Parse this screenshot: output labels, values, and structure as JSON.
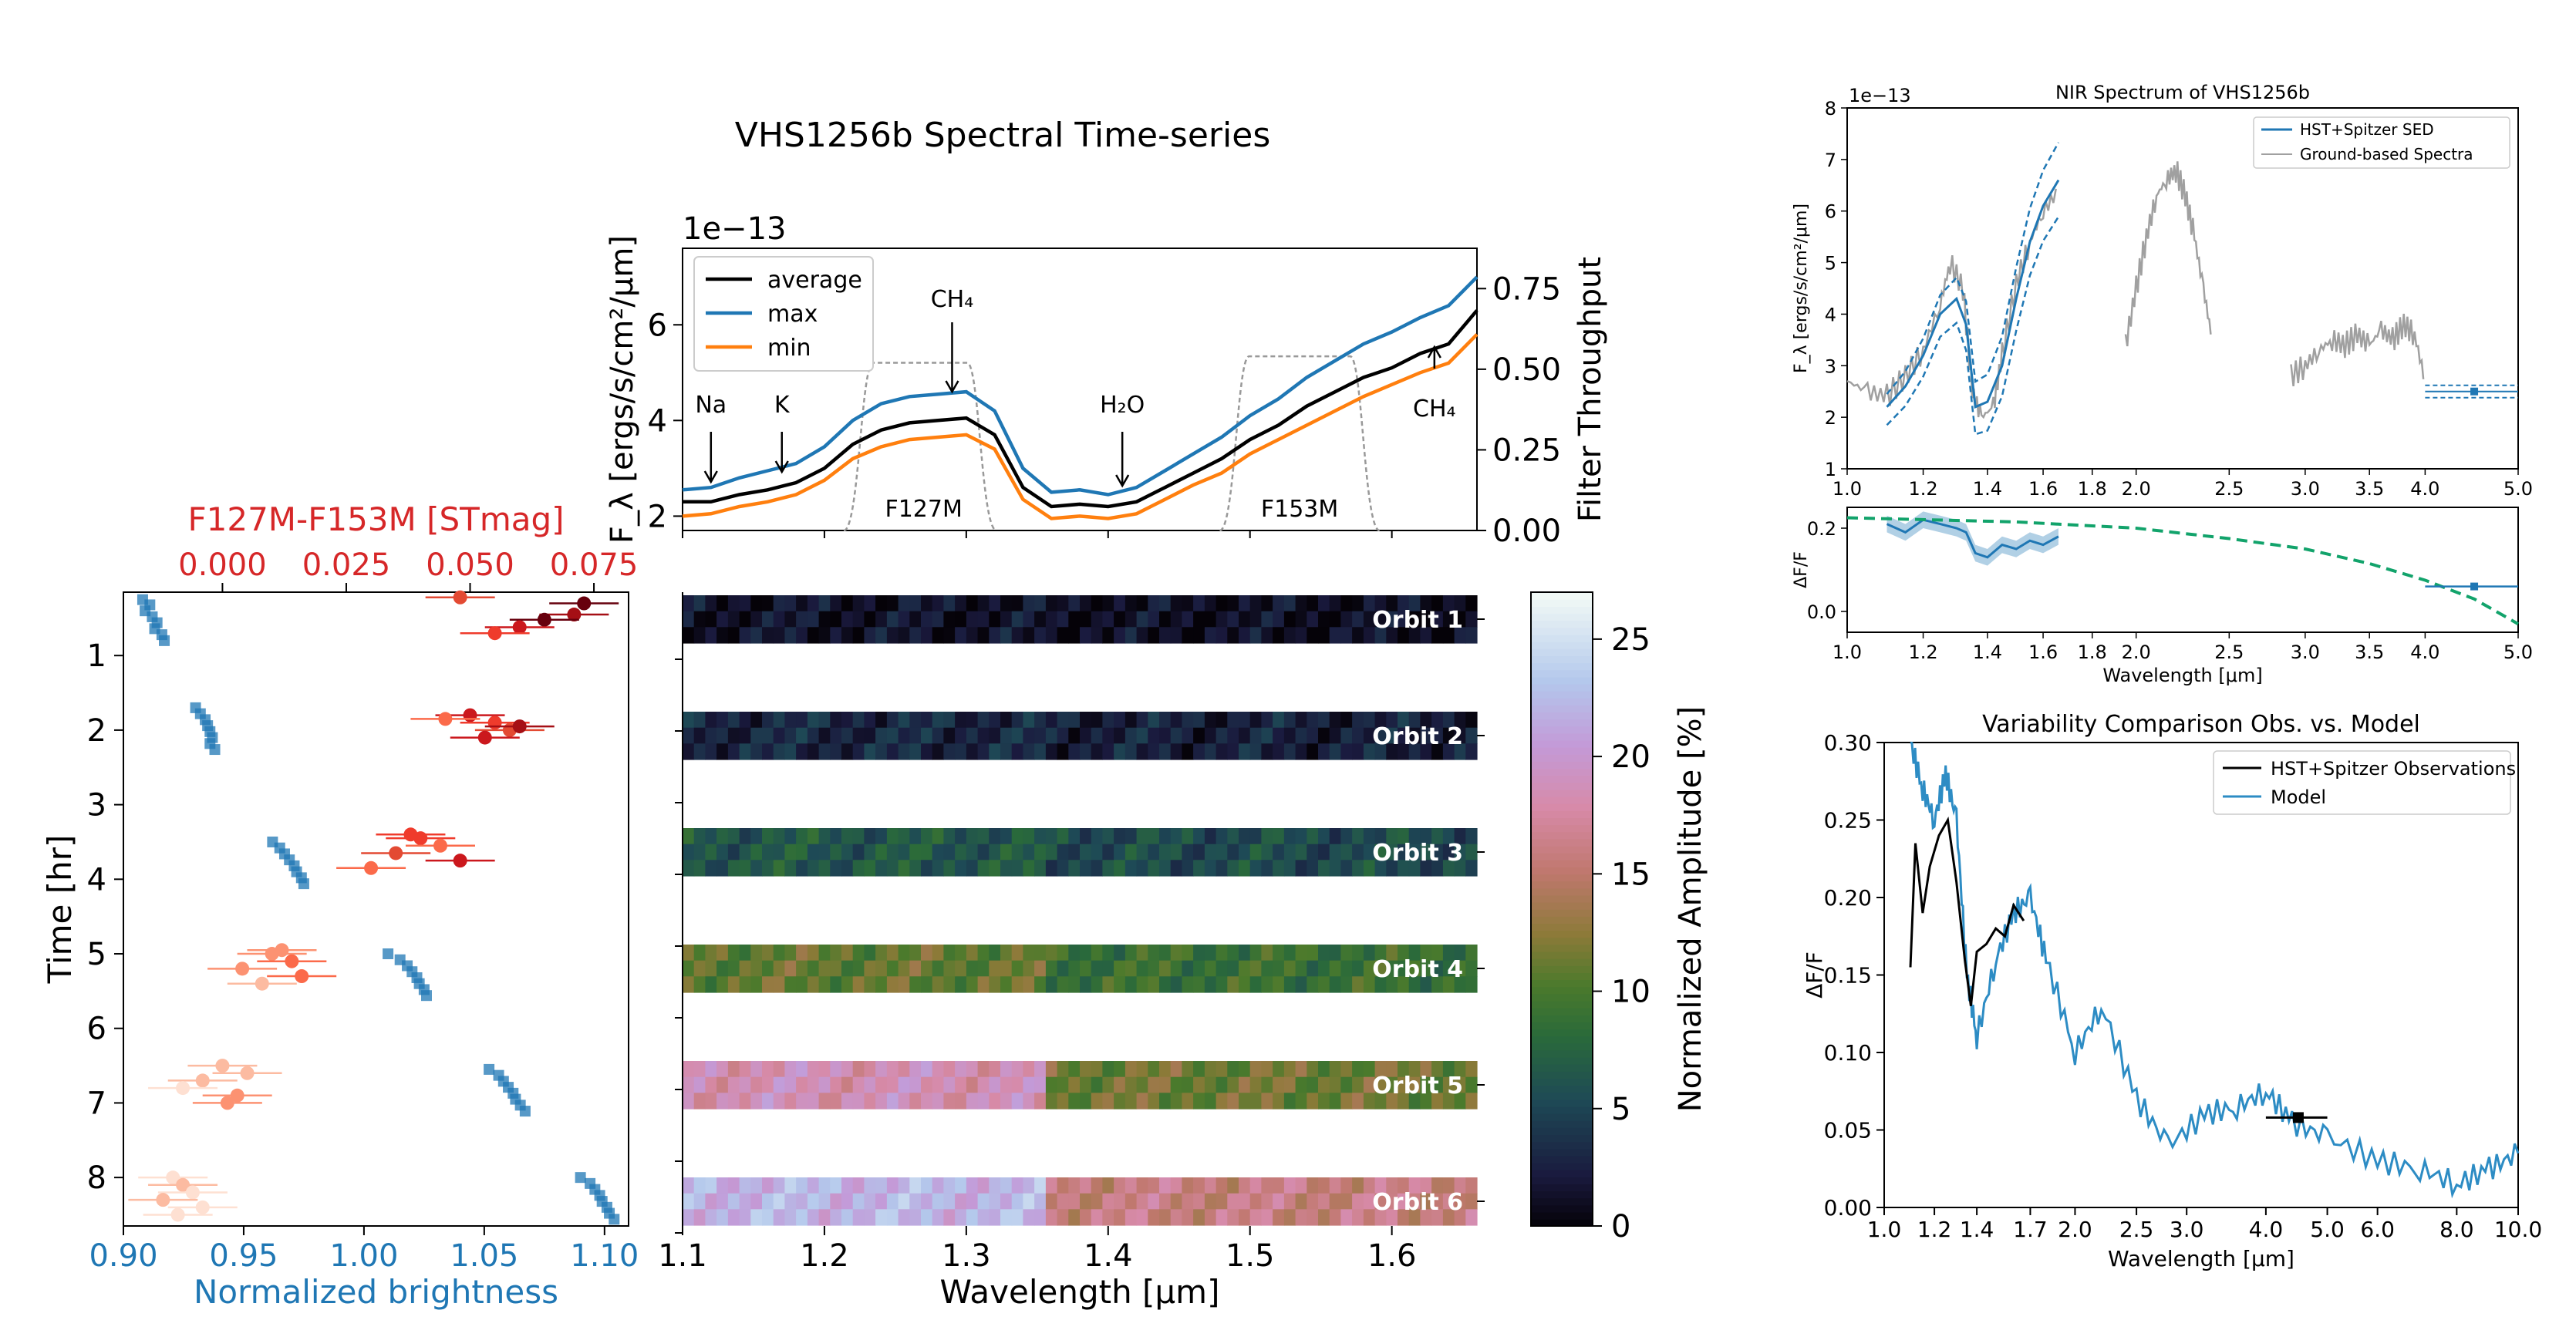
{
  "figure": {
    "title": "VHS1256b Spectral Time-series"
  },
  "chart_data": [
    {
      "id": "spectrum",
      "type": "line",
      "ylabel": "F_λ [ergs/s/cm²/μm]",
      "y_offset_text": "1e−13",
      "y2label": "Filter Throughput",
      "xlim": [
        1.1,
        1.66
      ],
      "ylim": [
        1.7,
        7.6
      ],
      "y2lim": [
        0.0,
        0.875
      ],
      "yticks": [
        "2",
        "4",
        "6"
      ],
      "y2ticks": [
        "0.00",
        "0.25",
        "0.50",
        "0.75"
      ],
      "legend": [
        "average",
        "max",
        "min"
      ],
      "colors": {
        "average": "#000000",
        "max": "#1f77b4",
        "min": "#ff7f0e",
        "filter": "#999999"
      },
      "x": [
        1.1,
        1.12,
        1.14,
        1.16,
        1.18,
        1.2,
        1.22,
        1.24,
        1.26,
        1.28,
        1.3,
        1.32,
        1.34,
        1.36,
        1.38,
        1.4,
        1.42,
        1.44,
        1.46,
        1.48,
        1.5,
        1.52,
        1.54,
        1.56,
        1.58,
        1.6,
        1.62,
        1.64,
        1.66
      ],
      "series": [
        {
          "name": "average",
          "values": [
            2.3,
            2.3,
            2.45,
            2.55,
            2.7,
            3.0,
            3.5,
            3.8,
            3.95,
            4.0,
            4.05,
            3.7,
            2.6,
            2.2,
            2.25,
            2.2,
            2.3,
            2.6,
            2.9,
            3.2,
            3.6,
            3.9,
            4.3,
            4.6,
            4.9,
            5.1,
            5.4,
            5.6,
            6.3
          ]
        },
        {
          "name": "max",
          "values": [
            2.55,
            2.6,
            2.8,
            2.95,
            3.1,
            3.45,
            4.0,
            4.35,
            4.5,
            4.55,
            4.6,
            4.2,
            3.0,
            2.5,
            2.55,
            2.45,
            2.6,
            2.95,
            3.3,
            3.65,
            4.1,
            4.45,
            4.9,
            5.25,
            5.6,
            5.85,
            6.15,
            6.4,
            7.0
          ]
        },
        {
          "name": "min",
          "values": [
            2.0,
            2.05,
            2.2,
            2.3,
            2.45,
            2.75,
            3.2,
            3.45,
            3.6,
            3.65,
            3.7,
            3.4,
            2.35,
            1.95,
            2.0,
            1.95,
            2.05,
            2.35,
            2.65,
            2.9,
            3.3,
            3.6,
            3.9,
            4.2,
            4.5,
            4.75,
            5.0,
            5.2,
            5.8
          ]
        }
      ],
      "filters": [
        {
          "name": "F127M",
          "range": [
            1.23,
            1.305
          ],
          "peak": 0.52
        },
        {
          "name": "F153M",
          "range": [
            1.495,
            1.575
          ],
          "peak": 0.54
        }
      ],
      "annotations": [
        {
          "text": "Na",
          "x": 1.12
        },
        {
          "text": "K",
          "x": 1.17
        },
        {
          "text": "CH₄",
          "x": 1.29
        },
        {
          "text": "H₂O",
          "x": 1.41
        },
        {
          "text": "CH₄",
          "x": 1.63
        },
        {
          "text": "F127M",
          "x": 1.27
        },
        {
          "text": "F153M",
          "x": 1.535
        }
      ]
    },
    {
      "id": "lightcurve",
      "type": "scatter",
      "xlabel": "Normalized brightness",
      "x2label": "F127M-F153M [STmag]",
      "ylabel": "Time [hr]",
      "xlim": [
        0.9,
        1.11
      ],
      "x2lim": [
        -0.02,
        0.082
      ],
      "ylim": [
        8.65,
        0.15
      ],
      "xticks": [
        "0.90",
        "0.95",
        "1.00",
        "1.05",
        "1.10"
      ],
      "x2ticks": [
        "0.000",
        "0.025",
        "0.050",
        "0.075"
      ],
      "yticks": [
        "1",
        "2",
        "3",
        "4",
        "5",
        "6",
        "7",
        "8"
      ],
      "colors": {
        "brightness": "#1f77b4",
        "color_index": "#d62728"
      },
      "brightness_points": [
        [
          0.908,
          0.25
        ],
        [
          0.911,
          0.32
        ],
        [
          0.909,
          0.4
        ],
        [
          0.912,
          0.48
        ],
        [
          0.914,
          0.56
        ],
        [
          0.913,
          0.64
        ],
        [
          0.916,
          0.72
        ],
        [
          0.917,
          0.8
        ],
        [
          0.93,
          1.7
        ],
        [
          0.932,
          1.78
        ],
        [
          0.934,
          1.86
        ],
        [
          0.935,
          1.94
        ],
        [
          0.936,
          2.02
        ],
        [
          0.937,
          2.1
        ],
        [
          0.936,
          2.18
        ],
        [
          0.938,
          2.26
        ],
        [
          0.962,
          3.5
        ],
        [
          0.965,
          3.58
        ],
        [
          0.967,
          3.66
        ],
        [
          0.969,
          3.74
        ],
        [
          0.971,
          3.82
        ],
        [
          0.972,
          3.9
        ],
        [
          0.974,
          3.98
        ],
        [
          0.975,
          4.06
        ],
        [
          1.01,
          5.0
        ],
        [
          1.015,
          5.08
        ],
        [
          1.018,
          5.16
        ],
        [
          1.02,
          5.24
        ],
        [
          1.022,
          5.32
        ],
        [
          1.023,
          5.4
        ],
        [
          1.025,
          5.48
        ],
        [
          1.026,
          5.56
        ],
        [
          1.052,
          6.55
        ],
        [
          1.056,
          6.63
        ],
        [
          1.058,
          6.71
        ],
        [
          1.06,
          6.79
        ],
        [
          1.062,
          6.87
        ],
        [
          1.063,
          6.95
        ],
        [
          1.065,
          7.03
        ],
        [
          1.067,
          7.11
        ],
        [
          1.09,
          8.0
        ],
        [
          1.094,
          8.08
        ],
        [
          1.096,
          8.16
        ],
        [
          1.098,
          8.24
        ],
        [
          1.099,
          8.32
        ],
        [
          1.101,
          8.4
        ],
        [
          1.102,
          8.48
        ],
        [
          1.104,
          8.56
        ]
      ],
      "color_points": [
        [
          0.048,
          0.22,
          "#e34a33"
        ],
        [
          0.071,
          0.45,
          "#a50f15"
        ],
        [
          0.065,
          0.52,
          "#67000d"
        ],
        [
          0.06,
          0.62,
          "#cb181d"
        ],
        [
          0.055,
          0.7,
          "#ef3b2c"
        ],
        [
          0.073,
          0.3,
          "#67000d"
        ],
        [
          0.05,
          1.8,
          "#cb181d"
        ],
        [
          0.055,
          1.9,
          "#ef3b2c"
        ],
        [
          0.058,
          2.0,
          "#e34a33"
        ],
        [
          0.053,
          2.1,
          "#cb181d"
        ],
        [
          0.045,
          1.85,
          "#fb6a4a"
        ],
        [
          0.06,
          1.95,
          "#a50f15"
        ],
        [
          0.04,
          3.45,
          "#ef3b2c"
        ],
        [
          0.044,
          3.55,
          "#fb6a4a"
        ],
        [
          0.035,
          3.65,
          "#e34a33"
        ],
        [
          0.048,
          3.75,
          "#cb181d"
        ],
        [
          0.03,
          3.85,
          "#fb6a4a"
        ],
        [
          0.038,
          3.4,
          "#ef3b2c"
        ],
        [
          0.01,
          5.0,
          "#fc9272"
        ],
        [
          0.014,
          5.1,
          "#fb6a4a"
        ],
        [
          0.004,
          5.2,
          "#fc9272"
        ],
        [
          0.016,
          5.3,
          "#fb6a4a"
        ],
        [
          0.008,
          5.4,
          "#fcbba1"
        ],
        [
          0.012,
          4.95,
          "#fc9272"
        ],
        [
          0.0,
          6.5,
          "#fcbba1"
        ],
        [
          -0.004,
          6.7,
          "#fcbba1"
        ],
        [
          0.003,
          6.9,
          "#fc9272"
        ],
        [
          -0.008,
          6.8,
          "#fee0d2"
        ],
        [
          0.005,
          6.6,
          "#fcbba1"
        ],
        [
          0.001,
          7.0,
          "#fc9272"
        ],
        [
          -0.01,
          8.0,
          "#fee0d2"
        ],
        [
          -0.008,
          8.1,
          "#fcbba1"
        ],
        [
          -0.006,
          8.2,
          "#fee0d2"
        ],
        [
          -0.012,
          8.3,
          "#fcbba1"
        ],
        [
          -0.004,
          8.4,
          "#fee0d2"
        ],
        [
          -0.009,
          8.5,
          "#fee0d2"
        ]
      ]
    },
    {
      "id": "amplitude-map",
      "type": "heatmap",
      "xlabel": "Wavelength [μm]",
      "xlim": [
        1.1,
        1.66
      ],
      "xticks": [
        "1.1",
        "1.2",
        "1.3",
        "1.4",
        "1.5",
        "1.6"
      ],
      "colorbar_label": "Normalized Amplitude [%]",
      "colorbar_ticks": [
        "0",
        "5",
        "10",
        "15",
        "20",
        "25"
      ],
      "colorbar_range": [
        0,
        27
      ],
      "orbits": [
        {
          "label": "Orbit 1",
          "blue_amp": 1.5,
          "red_amp": 1.2
        },
        {
          "label": "Orbit 2",
          "blue_amp": 3.0,
          "red_amp": 2.5
        },
        {
          "label": "Orbit 3",
          "blue_amp": 6.5,
          "red_amp": 5.5
        },
        {
          "label": "Orbit 4",
          "blue_amp": 11.0,
          "red_amp": 9.0
        },
        {
          "label": "Orbit 5",
          "blue_amp": 18.5,
          "red_amp": 11.5
        },
        {
          "label": "Orbit 6",
          "blue_amp": 22.0,
          "red_amp": 16.0
        }
      ]
    },
    {
      "id": "nir-spectrum",
      "type": "line",
      "title": "NIR Spectrum of VHS1256b",
      "xlabel": "Wavelength [μm]",
      "ylabel": "F_λ [ergs/s/cm²/μm]",
      "y_offset_text": "1e−13",
      "xlim": [
        1.0,
        5.0
      ],
      "ylim": [
        1.0,
        8.0
      ],
      "xticks": [
        "1.0",
        "1.2",
        "1.4",
        "1.6",
        "1.8",
        "2.0",
        "2.5",
        "3.0",
        "3.5",
        "4.0",
        "5.0"
      ],
      "yticks": [
        "1",
        "2",
        "3",
        "4",
        "5",
        "6",
        "7",
        "8"
      ],
      "legend": [
        "HST+Spitzer SED",
        "Ground-based Spectra"
      ],
      "hst": {
        "x": [
          1.1,
          1.15,
          1.2,
          1.25,
          1.3,
          1.33,
          1.36,
          1.4,
          1.45,
          1.5,
          1.55,
          1.6,
          1.66
        ],
        "y": [
          2.2,
          2.6,
          3.2,
          4.0,
          4.3,
          3.8,
          2.2,
          2.3,
          3.0,
          4.3,
          5.4,
          6.1,
          6.6
        ]
      },
      "ground": [
        {
          "x": [
            1.0,
            1.05,
            1.1,
            1.15,
            1.2,
            1.25,
            1.28,
            1.32,
            1.35,
            1.38,
            1.42,
            1.45,
            1.5,
            1.55,
            1.6,
            1.66
          ],
          "y": [
            2.7,
            2.5,
            2.4,
            2.8,
            3.3,
            4.2,
            5.0,
            4.5,
            2.5,
            2.0,
            2.2,
            3.2,
            4.6,
            5.4,
            6.0,
            6.4
          ]
        },
        {
          "x": [
            1.95,
            2.0,
            2.05,
            2.1,
            2.15,
            2.2,
            2.25,
            2.3,
            2.35,
            2.4
          ],
          "y": [
            3.4,
            4.5,
            5.5,
            6.3,
            6.6,
            6.8,
            6.3,
            5.5,
            4.5,
            3.5
          ]
        },
        {
          "x": [
            2.9,
            3.0,
            3.1,
            3.2,
            3.3,
            3.4,
            3.5,
            3.6,
            3.7,
            3.8,
            3.9,
            4.0
          ],
          "y": [
            2.8,
            3.0,
            3.3,
            3.5,
            3.4,
            3.6,
            3.4,
            3.7,
            3.5,
            3.8,
            3.6,
            2.7
          ]
        }
      ],
      "spitzer_point": {
        "x": 4.5,
        "y": 2.5,
        "xerr": 0.5
      }
    },
    {
      "id": "nir-variability",
      "type": "line",
      "xlabel": "Wavelength [μm]",
      "ylabel": "ΔF/F",
      "xlim": [
        1.0,
        5.0
      ],
      "ylim": [
        -0.05,
        0.25
      ],
      "xticks": [
        "1.0",
        "1.2",
        "1.4",
        "1.6",
        "1.8",
        "2.0",
        "2.5",
        "3.0",
        "3.5",
        "4.0",
        "5.0"
      ],
      "yticks": [
        "0.0",
        "0.2"
      ],
      "observed": {
        "x": [
          1.1,
          1.15,
          1.2,
          1.25,
          1.3,
          1.33,
          1.36,
          1.4,
          1.45,
          1.5,
          1.55,
          1.6,
          1.66
        ],
        "y": [
          0.21,
          0.19,
          0.22,
          0.21,
          0.2,
          0.19,
          0.14,
          0.13,
          0.16,
          0.15,
          0.17,
          0.16,
          0.18
        ]
      },
      "trend": {
        "x": [
          1.0,
          1.5,
          2.0,
          2.5,
          3.0,
          3.5,
          4.0,
          4.5,
          5.0
        ],
        "y": [
          0.225,
          0.215,
          0.2,
          0.175,
          0.15,
          0.115,
          0.075,
          0.03,
          -0.03
        ]
      },
      "spitzer_point": {
        "x": 4.5,
        "y": 0.06,
        "xerr": 0.5
      }
    },
    {
      "id": "model-comparison",
      "type": "line",
      "title": "Variability Comparison Obs. vs. Model",
      "xlabel": "Wavelength [μm]",
      "ylabel": "ΔF/F",
      "xlim": [
        1.0,
        10.0
      ],
      "ylim": [
        0.0,
        0.3
      ],
      "xticks": [
        "1.0",
        "1.2",
        "1.4",
        "1.7",
        "2.0",
        "2.5",
        "3.0",
        "4.0",
        "5.0",
        "6.0",
        "8.0",
        "10.0"
      ],
      "yticks": [
        "0.00",
        "0.05",
        "0.10",
        "0.15",
        "0.20",
        "0.25",
        "0.30"
      ],
      "legend": [
        "HST+Spitzer Observations",
        "Model"
      ],
      "observations": {
        "x": [
          1.1,
          1.12,
          1.15,
          1.18,
          1.22,
          1.26,
          1.3,
          1.34,
          1.37,
          1.4,
          1.45,
          1.5,
          1.55,
          1.6,
          1.66
        ],
        "y": [
          0.155,
          0.235,
          0.19,
          0.22,
          0.24,
          0.25,
          0.21,
          0.16,
          0.13,
          0.165,
          0.17,
          0.18,
          0.175,
          0.195,
          0.185
        ]
      },
      "model": {
        "x": [
          1.1,
          1.15,
          1.2,
          1.25,
          1.3,
          1.35,
          1.4,
          1.5,
          1.6,
          1.7,
          1.8,
          2.0,
          2.2,
          2.5,
          2.8,
          3.2,
          3.6,
          4.0,
          4.4,
          5.0,
          6.0,
          7.0,
          8.0,
          9.0,
          10.0
        ],
        "y": [
          0.3,
          0.27,
          0.25,
          0.28,
          0.25,
          0.15,
          0.11,
          0.16,
          0.19,
          0.2,
          0.16,
          0.1,
          0.13,
          0.07,
          0.04,
          0.06,
          0.065,
          0.075,
          0.055,
          0.045,
          0.03,
          0.025,
          0.015,
          0.025,
          0.035
        ]
      },
      "spitzer_point": {
        "x": 4.5,
        "y": 0.058,
        "xerr": 0.5
      }
    }
  ]
}
